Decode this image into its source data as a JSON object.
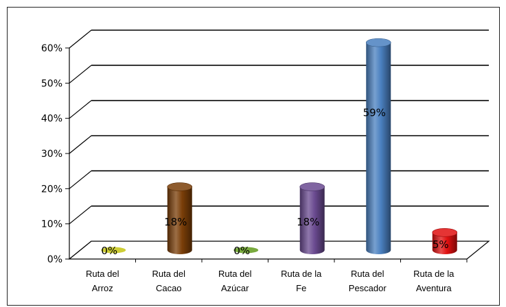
{
  "chart_data": {
    "type": "bar",
    "style": "3d-cylinder",
    "categories": [
      [
        "Ruta del",
        "Arroz"
      ],
      [
        "Ruta del",
        "Cacao"
      ],
      [
        "Ruta del",
        "Azúcar"
      ],
      [
        "Ruta de la",
        "Fe"
      ],
      [
        "Ruta del",
        "Pescador"
      ],
      [
        "Ruta de la",
        "Aventura"
      ]
    ],
    "values": [
      0,
      18,
      0,
      18,
      59,
      5
    ],
    "data_labels": [
      "0%",
      "18%",
      "0%",
      "18%",
      "59%",
      "5%"
    ],
    "colors": [
      "#c8c820",
      "#7a3e08",
      "#6aa028",
      "#6a4a90",
      "#4a80c0",
      "#e01010"
    ],
    "yticks": [
      "0%",
      "10%",
      "20%",
      "30%",
      "40%",
      "50%",
      "60%"
    ],
    "ylim": [
      0,
      60
    ],
    "grid": true,
    "legend": false
  }
}
